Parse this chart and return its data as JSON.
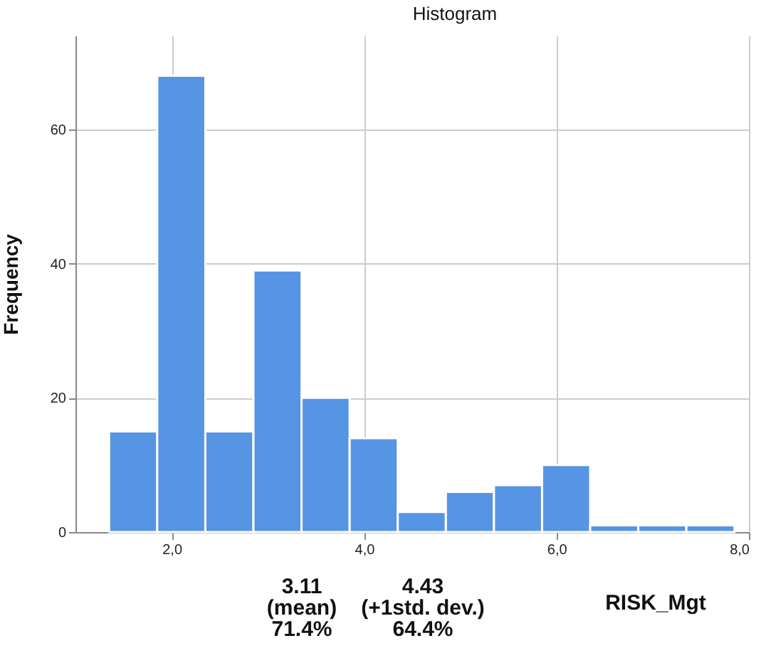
{
  "chart_data": {
    "type": "histogram",
    "title": "Histogram",
    "xlabel": "RISK_Mgt",
    "ylabel": "Frequency",
    "bins": [
      1.35,
      1.85,
      2.35,
      2.85,
      3.35,
      3.85,
      4.35,
      4.85,
      5.35,
      5.85,
      6.35,
      6.85,
      7.35,
      7.85
    ],
    "values": [
      15,
      68,
      15,
      39,
      20,
      14,
      3,
      6,
      7,
      10,
      1,
      1,
      1
    ],
    "color": "#5694e4",
    "xlim": [
      1.0,
      8.0
    ],
    "xticks": [
      {
        "value": 2,
        "label": "2,0"
      },
      {
        "value": 4,
        "label": "4,0"
      },
      {
        "value": 6,
        "label": "6,0"
      },
      {
        "value": 8,
        "label": "8,0"
      }
    ],
    "ylim": [
      0,
      74
    ],
    "yticks": [
      0,
      20,
      40,
      60
    ],
    "grid": true,
    "annotations": [
      "3.11\n(mean)\n71.4%",
      "4.43\n(+1std. dev.)\n64.4%"
    ]
  }
}
